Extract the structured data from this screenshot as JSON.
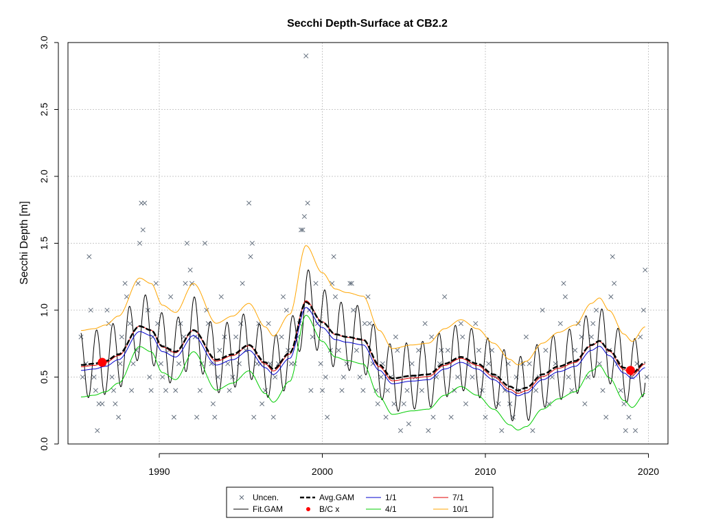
{
  "chart_data": {
    "type": "line",
    "title": "Secchi Depth-Surface at CB2.2",
    "xlabel": "",
    "ylabel": "Secchi Depth [m]",
    "xlim": [
      1984.4,
      2021.2
    ],
    "ylim": [
      0,
      3.0
    ],
    "x_ticks": [
      1990,
      2000,
      2010,
      2020
    ],
    "y_ticks": [
      0.0,
      0.5,
      1.0,
      1.5,
      2.0,
      2.5,
      3.0
    ],
    "y_tick_labels": [
      "0.0",
      "0.5",
      "1.0",
      "1.5",
      "2.0",
      "2.5",
      "3.0"
    ],
    "grid": true,
    "legend_position": "bottom",
    "colors": {
      "uncen": "#5f6b7a",
      "fit_gam": "#000000",
      "avg_gam": "#000000",
      "bc": "#ff0000",
      "s1_1": "#0000cd",
      "s4_1": "#00cc00",
      "s7_1": "#e00000",
      "s10_1": "#ffa500",
      "grid": "#c8c8c8"
    },
    "legend": [
      {
        "key": "uncen",
        "label": "Uncen."
      },
      {
        "key": "fit",
        "label": "Fit.GAM"
      },
      {
        "key": "avg",
        "label": "Avg.GAM"
      },
      {
        "key": "bc",
        "label": "B/C x"
      },
      {
        "key": "s1",
        "label": "1/1"
      },
      {
        "key": "s4",
        "label": "4/1"
      },
      {
        "key": "s7",
        "label": "7/1"
      },
      {
        "key": "s10",
        "label": "10/1"
      }
    ],
    "bc_points": [
      {
        "x": 1986.5,
        "y": 0.61
      },
      {
        "x": 2018.9,
        "y": 0.55
      }
    ],
    "avg_gam": {
      "x": [
        1985.2,
        1986,
        1986.7,
        1987.5,
        1988.8,
        1989.5,
        1990.2,
        1991,
        1992.1,
        1993.5,
        1994.5,
        1995.5,
        1996.5,
        1997,
        1998,
        1999,
        2000,
        2000.8,
        2001.5,
        2002.5,
        2003.5,
        2004.3,
        2005.5,
        2006.5,
        2007.5,
        2008.5,
        2009.5,
        2010.5,
        2011.5,
        2012,
        2012.5,
        2013.5,
        2014.5,
        2015.5,
        2016.5,
        2017,
        2017.6,
        2018.5,
        2019,
        2019.8
      ],
      "y": [
        0.59,
        0.6,
        0.62,
        0.67,
        0.88,
        0.85,
        0.73,
        0.69,
        0.85,
        0.63,
        0.67,
        0.74,
        0.61,
        0.56,
        0.68,
        1.06,
        0.91,
        0.82,
        0.8,
        0.78,
        0.59,
        0.49,
        0.51,
        0.52,
        0.6,
        0.65,
        0.6,
        0.52,
        0.43,
        0.4,
        0.42,
        0.52,
        0.58,
        0.62,
        0.74,
        0.77,
        0.7,
        0.57,
        0.53,
        0.61
      ]
    },
    "curves": {
      "s1": {
        "offset": -0.04,
        "amp_scale": 1.0
      },
      "s4": {
        "offset": -0.22,
        "amp_scale": 1.3
      },
      "s7": {
        "offset": -0.01,
        "amp_scale": 1.05
      },
      "s10": {
        "offset": 0.28,
        "amp_scale": 1.35
      }
    },
    "fit_gam": {
      "seasonal_amplitude": 0.25,
      "period_years": 1.0
    },
    "uncen_points": [
      [
        1985.2,
        0.8
      ],
      [
        1985.3,
        0.5
      ],
      [
        1985.5,
        0.6
      ],
      [
        1985.7,
        1.4
      ],
      [
        1985.8,
        1.0
      ],
      [
        1986.0,
        0.5
      ],
      [
        1986.1,
        0.4
      ],
      [
        1986.2,
        0.1
      ],
      [
        1986.3,
        0.3
      ],
      [
        1986.5,
        0.3
      ],
      [
        1986.6,
        0.6
      ],
      [
        1986.8,
        1.0
      ],
      [
        1986.9,
        0.9
      ],
      [
        1987.1,
        0.5
      ],
      [
        1987.2,
        0.4
      ],
      [
        1987.3,
        0.3
      ],
      [
        1987.5,
        0.2
      ],
      [
        1987.6,
        0.6
      ],
      [
        1987.7,
        0.8
      ],
      [
        1987.9,
        1.2
      ],
      [
        1988.0,
        1.1
      ],
      [
        1988.2,
        0.9
      ],
      [
        1988.3,
        0.4
      ],
      [
        1988.4,
        0.6
      ],
      [
        1988.6,
        0.7
      ],
      [
        1988.7,
        1.2
      ],
      [
        1988.8,
        1.5
      ],
      [
        1988.9,
        1.8
      ],
      [
        1989.0,
        1.6
      ],
      [
        1989.1,
        1.8
      ],
      [
        1989.3,
        1.0
      ],
      [
        1989.4,
        0.5
      ],
      [
        1989.5,
        0.4
      ],
      [
        1989.6,
        0.8
      ],
      [
        1989.8,
        1.2
      ],
      [
        1989.9,
        0.9
      ],
      [
        1990.1,
        0.6
      ],
      [
        1990.2,
        0.5
      ],
      [
        1990.4,
        0.4
      ],
      [
        1990.6,
        0.7
      ],
      [
        1990.7,
        1.1
      ],
      [
        1990.9,
        0.2
      ],
      [
        1991.0,
        0.4
      ],
      [
        1991.2,
        0.6
      ],
      [
        1991.3,
        0.9
      ],
      [
        1991.5,
        0.8
      ],
      [
        1991.6,
        1.2
      ],
      [
        1991.7,
        1.5
      ],
      [
        1991.9,
        1.3
      ],
      [
        1992.0,
        1.2
      ],
      [
        1992.2,
        0.8
      ],
      [
        1992.3,
        0.2
      ],
      [
        1992.5,
        0.4
      ],
      [
        1992.6,
        0.6
      ],
      [
        1992.8,
        1.5
      ],
      [
        1992.9,
        1.0
      ],
      [
        1993.0,
        0.9
      ],
      [
        1993.2,
        0.6
      ],
      [
        1993.3,
        0.3
      ],
      [
        1993.4,
        0.2
      ],
      [
        1993.6,
        0.5
      ],
      [
        1993.7,
        0.7
      ],
      [
        1993.8,
        1.1
      ],
      [
        1994.0,
        0.8
      ],
      [
        1994.2,
        0.6
      ],
      [
        1994.3,
        0.4
      ],
      [
        1994.5,
        0.5
      ],
      [
        1994.7,
        0.8
      ],
      [
        1994.9,
        0.6
      ],
      [
        1995.0,
        0.9
      ],
      [
        1995.1,
        1.2
      ],
      [
        1995.3,
        0.7
      ],
      [
        1995.5,
        1.8
      ],
      [
        1995.6,
        1.4
      ],
      [
        1995.7,
        1.5
      ],
      [
        1995.8,
        0.2
      ],
      [
        1996.0,
        0.6
      ],
      [
        1996.1,
        0.9
      ],
      [
        1996.2,
        0.6
      ],
      [
        1996.3,
        0.3
      ],
      [
        1996.5,
        0.4
      ],
      [
        1996.7,
        0.9
      ],
      [
        1996.8,
        0.6
      ],
      [
        1997.0,
        0.2
      ],
      [
        1997.1,
        0.5
      ],
      [
        1997.3,
        0.6
      ],
      [
        1997.5,
        0.8
      ],
      [
        1997.6,
        1.1
      ],
      [
        1997.8,
        1.0
      ],
      [
        1997.9,
        0.7
      ],
      [
        1998.1,
        0.6
      ],
      [
        1998.3,
        0.6
      ],
      [
        1998.5,
        0.8
      ],
      [
        1998.6,
        0.9
      ],
      [
        1998.7,
        1.6
      ],
      [
        1998.8,
        1.6
      ],
      [
        1998.9,
        1.7
      ],
      [
        1999.0,
        2.9
      ],
      [
        1999.1,
        1.8
      ],
      [
        1999.2,
        1.0
      ],
      [
        1999.3,
        0.4
      ],
      [
        1999.4,
        0.8
      ],
      [
        1999.6,
        1.2
      ],
      [
        1999.7,
        0.9
      ],
      [
        1999.9,
        0.6
      ],
      [
        2000.0,
        0.4
      ],
      [
        2000.2,
        0.5
      ],
      [
        2000.3,
        0.2
      ],
      [
        2000.5,
        0.7
      ],
      [
        2000.6,
        1.2
      ],
      [
        2000.7,
        1.4
      ],
      [
        2000.8,
        1.1
      ],
      [
        2001.0,
        0.7
      ],
      [
        2001.2,
        0.4
      ],
      [
        2001.3,
        0.5
      ],
      [
        2001.5,
        0.6
      ],
      [
        2001.7,
        1.2
      ],
      [
        2001.8,
        1.2
      ],
      [
        2001.9,
        1.0
      ],
      [
        2002.1,
        0.7
      ],
      [
        2002.3,
        0.5
      ],
      [
        2002.5,
        0.4
      ],
      [
        2002.6,
        0.9
      ],
      [
        2002.8,
        1.1
      ],
      [
        2002.9,
        0.9
      ],
      [
        2003.1,
        0.6
      ],
      [
        2003.3,
        0.4
      ],
      [
        2003.4,
        0.3
      ],
      [
        2003.6,
        0.5
      ],
      [
        2003.7,
        0.6
      ],
      [
        2003.9,
        0.2
      ],
      [
        2004.0,
        0.4
      ],
      [
        2004.2,
        0.5
      ],
      [
        2004.4,
        0.3
      ],
      [
        2004.5,
        0.8
      ],
      [
        2004.6,
        0.7
      ],
      [
        2004.8,
        0.1
      ],
      [
        2005.0,
        0.3
      ],
      [
        2005.2,
        0.4
      ],
      [
        2005.3,
        0.15
      ],
      [
        2005.5,
        0.6
      ],
      [
        2005.7,
        0.5
      ],
      [
        2005.9,
        0.7
      ],
      [
        2006.1,
        0.4
      ],
      [
        2006.3,
        0.9
      ],
      [
        2006.5,
        0.1
      ],
      [
        2006.7,
        0.8
      ],
      [
        2006.8,
        0.2
      ],
      [
        2007.0,
        0.5
      ],
      [
        2007.2,
        0.6
      ],
      [
        2007.3,
        0.7
      ],
      [
        2007.5,
        1.1
      ],
      [
        2007.7,
        0.7
      ],
      [
        2007.9,
        0.2
      ],
      [
        2008.1,
        0.4
      ],
      [
        2008.3,
        0.5
      ],
      [
        2008.5,
        0.9
      ],
      [
        2008.6,
        0.8
      ],
      [
        2008.8,
        0.3
      ],
      [
        2009.0,
        0.6
      ],
      [
        2009.2,
        0.5
      ],
      [
        2009.4,
        0.9
      ],
      [
        2009.6,
        0.7
      ],
      [
        2009.8,
        0.4
      ],
      [
        2010.0,
        0.2
      ],
      [
        2010.2,
        0.6
      ],
      [
        2010.4,
        0.7
      ],
      [
        2010.6,
        0.5
      ],
      [
        2010.8,
        0.3
      ],
      [
        2011.0,
        0.1
      ],
      [
        2011.2,
        0.4
      ],
      [
        2011.4,
        0.6
      ],
      [
        2011.5,
        0.3
      ],
      [
        2011.7,
        0.2
      ],
      [
        2011.9,
        0.5
      ],
      [
        2012.1,
        0.4
      ],
      [
        2012.3,
        0.6
      ],
      [
        2012.5,
        0.8
      ],
      [
        2012.7,
        0.6
      ],
      [
        2012.9,
        0.1
      ],
      [
        2013.1,
        0.4
      ],
      [
        2013.3,
        0.5
      ],
      [
        2013.5,
        1.0
      ],
      [
        2013.7,
        0.7
      ],
      [
        2013.9,
        0.3
      ],
      [
        2014.1,
        0.5
      ],
      [
        2014.3,
        0.6
      ],
      [
        2014.6,
        0.9
      ],
      [
        2014.8,
        1.2
      ],
      [
        2014.9,
        1.1
      ],
      [
        2015.1,
        0.5
      ],
      [
        2015.3,
        0.4
      ],
      [
        2015.5,
        0.7
      ],
      [
        2015.7,
        0.9
      ],
      [
        2015.9,
        0.8
      ],
      [
        2016.1,
        0.3
      ],
      [
        2016.3,
        0.5
      ],
      [
        2016.5,
        0.8
      ],
      [
        2016.6,
        0.9
      ],
      [
        2016.8,
        1.0
      ],
      [
        2017.0,
        0.6
      ],
      [
        2017.2,
        0.4
      ],
      [
        2017.4,
        0.2
      ],
      [
        2017.6,
        0.7
      ],
      [
        2017.7,
        1.1
      ],
      [
        2017.8,
        1.4
      ],
      [
        2017.9,
        1.2
      ],
      [
        2018.1,
        0.6
      ],
      [
        2018.3,
        0.4
      ],
      [
        2018.5,
        0.3
      ],
      [
        2018.6,
        0.1
      ],
      [
        2018.8,
        0.2
      ],
      [
        2019.0,
        0.5
      ],
      [
        2019.2,
        0.1
      ],
      [
        2019.3,
        0.6
      ],
      [
        2019.5,
        0.8
      ],
      [
        2019.7,
        1.0
      ],
      [
        2019.8,
        1.3
      ],
      [
        2019.9,
        0.5
      ]
    ]
  }
}
